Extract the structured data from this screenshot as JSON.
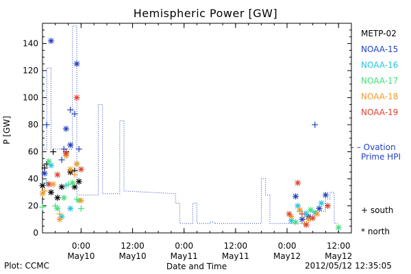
{
  "page": {
    "plot_credit": "Plot: CCMC",
    "timestamp": "2012/05/12 12:35:05"
  },
  "chart_data": {
    "type": "scatter",
    "title": "Hemispheric Power [GW]",
    "xlabel": "Date and Time",
    "ylabel": "P [GW]",
    "ylim": [
      0,
      155
    ],
    "xlim": [
      "2012-05-09 15:00",
      "2012-05-12 15:00"
    ],
    "yticks": [
      0,
      20,
      40,
      60,
      80,
      100,
      120,
      140
    ],
    "xticks": [
      {
        "t": "2012-05-10 00:00",
        "line1": "0:00",
        "line2": "May10"
      },
      {
        "t": "2012-05-10 12:00",
        "line1": "12:00",
        "line2": "May10"
      },
      {
        "t": "2012-05-11 00:00",
        "line1": "0:00",
        "line2": "May11"
      },
      {
        "t": "2012-05-11 12:00",
        "line1": "12:00",
        "line2": "May11"
      },
      {
        "t": "2012-05-12 00:00",
        "line1": "0:00",
        "line2": "May12"
      },
      {
        "t": "2012-05-12 12:00",
        "line1": "12:00",
        "line2": "May12"
      }
    ],
    "grid": false,
    "legend_position": "right",
    "satellites": [
      {
        "name": "METP-02",
        "color": "#000000"
      },
      {
        "name": "NOAA-15",
        "color": "#1f3fbf"
      },
      {
        "name": "NOAA-16",
        "color": "#22c4e0"
      },
      {
        "name": "NOAA-17",
        "color": "#3ee07a"
      },
      {
        "name": "NOAA-18",
        "color": "#f09a2a"
      },
      {
        "name": "NOAA-19",
        "color": "#e0402a"
      }
    ],
    "ovation": {
      "label_line1": "Ovation",
      "label_line2": "Prime HPI",
      "color": "#1f3fbf",
      "points": [
        [
          "2012-05-09 15:00",
          62
        ],
        [
          "2012-05-09 16:00",
          62
        ],
        [
          "2012-05-09 16:00",
          122
        ],
        [
          "2012-05-09 17:00",
          122
        ],
        [
          "2012-05-09 17:00",
          62
        ],
        [
          "2012-05-09 22:00",
          62
        ],
        [
          "2012-05-09 22:00",
          153
        ],
        [
          "2012-05-09 23:00",
          153
        ],
        [
          "2012-05-09 23:00",
          28
        ],
        [
          "2012-05-10 04:00",
          28
        ],
        [
          "2012-05-10 04:00",
          95
        ],
        [
          "2012-05-10 05:00",
          95
        ],
        [
          "2012-05-10 05:00",
          29
        ],
        [
          "2012-05-10 09:00",
          29
        ],
        [
          "2012-05-10 09:00",
          83
        ],
        [
          "2012-05-10 10:00",
          83
        ],
        [
          "2012-05-10 10:00",
          31
        ],
        [
          "2012-05-10 22:00",
          29
        ],
        [
          "2012-05-10 22:00",
          22
        ],
        [
          "2012-05-10 23:00",
          22
        ],
        [
          "2012-05-10 23:00",
          7
        ],
        [
          "2012-05-11 02:00",
          7
        ],
        [
          "2012-05-11 02:00",
          22
        ],
        [
          "2012-05-11 03:00",
          22
        ],
        [
          "2012-05-11 03:00",
          7
        ],
        [
          "2012-05-11 06:00",
          7
        ],
        [
          "2012-05-11 06:00",
          8
        ],
        [
          "2012-05-11 07:00",
          8
        ],
        [
          "2012-05-11 07:00",
          7
        ],
        [
          "2012-05-11 18:00",
          7
        ],
        [
          "2012-05-11 18:00",
          40
        ],
        [
          "2012-05-11 19:00",
          40
        ],
        [
          "2012-05-11 19:00",
          28
        ],
        [
          "2012-05-11 20:00",
          28
        ],
        [
          "2012-05-11 20:00",
          7
        ],
        [
          "2012-05-12 04:00",
          7
        ],
        [
          "2012-05-12 04:00",
          16
        ],
        [
          "2012-05-12 09:00",
          16
        ],
        [
          "2012-05-12 09:00",
          25
        ],
        [
          "2012-05-12 10:00",
          25
        ],
        [
          "2012-05-12 10:00",
          30
        ],
        [
          "2012-05-12 11:00",
          30
        ],
        [
          "2012-05-12 11:00",
          7
        ],
        [
          "2012-05-12 12:00",
          7
        ]
      ]
    },
    "markers": {
      "south_label": "+ south",
      "north_label": "* north"
    },
    "observations": [
      {
        "sat": "METP-02",
        "hem": "south",
        "t": "2012-05-09 15:30",
        "p": 48
      },
      {
        "sat": "METP-02",
        "hem": "south",
        "t": "2012-05-09 16:00",
        "p": 51
      },
      {
        "sat": "METP-02",
        "hem": "south",
        "t": "2012-05-09 17:30",
        "p": 60
      },
      {
        "sat": "METP-02",
        "hem": "south",
        "t": "2012-05-09 20:30",
        "p": 60
      },
      {
        "sat": "METP-02",
        "hem": "south",
        "t": "2012-05-09 22:30",
        "p": 46
      },
      {
        "sat": "METP-02",
        "hem": "north",
        "t": "2012-05-09 15:00",
        "p": 35
      },
      {
        "sat": "METP-02",
        "hem": "north",
        "t": "2012-05-09 17:00",
        "p": 30
      },
      {
        "sat": "METP-02",
        "hem": "north",
        "t": "2012-05-09 18:30",
        "p": 26
      },
      {
        "sat": "METP-02",
        "hem": "north",
        "t": "2012-05-09 19:30",
        "p": 34
      },
      {
        "sat": "METP-02",
        "hem": "north",
        "t": "2012-05-09 21:30",
        "p": 45
      },
      {
        "sat": "METP-02",
        "hem": "north",
        "t": "2012-05-09 22:30",
        "p": 34
      },
      {
        "sat": "METP-02",
        "hem": "north",
        "t": "2012-05-09 23:30",
        "p": 38
      },
      {
        "sat": "NOAA-15",
        "hem": "south",
        "t": "2012-05-09 16:00",
        "p": 80
      },
      {
        "sat": "NOAA-15",
        "hem": "south",
        "t": "2012-05-09 20:00",
        "p": 62
      },
      {
        "sat": "NOAA-15",
        "hem": "south",
        "t": "2012-05-09 21:30",
        "p": 91
      },
      {
        "sat": "NOAA-15",
        "hem": "south",
        "t": "2012-05-09 22:30",
        "p": 88
      },
      {
        "sat": "NOAA-15",
        "hem": "south",
        "t": "2012-05-09 23:30",
        "p": 62
      },
      {
        "sat": "NOAA-15",
        "hem": "south",
        "t": "2012-05-09 19:30",
        "p": 54
      },
      {
        "sat": "NOAA-15",
        "hem": "south",
        "t": "2012-05-12 06:30",
        "p": 80
      },
      {
        "sat": "NOAA-15",
        "hem": "north",
        "t": "2012-05-09 17:00",
        "p": 142
      },
      {
        "sat": "NOAA-15",
        "hem": "north",
        "t": "2012-05-09 20:30",
        "p": 77
      },
      {
        "sat": "NOAA-15",
        "hem": "north",
        "t": "2012-05-09 21:30",
        "p": 65
      },
      {
        "sat": "NOAA-15",
        "hem": "north",
        "t": "2012-05-09 23:00",
        "p": 125
      },
      {
        "sat": "NOAA-15",
        "hem": "north",
        "t": "2012-05-09 15:30",
        "p": 44
      },
      {
        "sat": "NOAA-15",
        "hem": "north",
        "t": "2012-05-12 02:00",
        "p": 27
      },
      {
        "sat": "NOAA-15",
        "hem": "north",
        "t": "2012-05-12 03:30",
        "p": 10
      },
      {
        "sat": "NOAA-15",
        "hem": "north",
        "t": "2012-05-12 05:00",
        "p": 12
      },
      {
        "sat": "NOAA-15",
        "hem": "north",
        "t": "2012-05-12 07:30",
        "p": 18
      },
      {
        "sat": "NOAA-15",
        "hem": "north",
        "t": "2012-05-12 09:00",
        "p": 28
      },
      {
        "sat": "NOAA-16",
        "hem": "south",
        "t": "2012-05-09 16:00",
        "p": 37
      },
      {
        "sat": "NOAA-16",
        "hem": "south",
        "t": "2012-05-09 20:30",
        "p": 35
      },
      {
        "sat": "NOAA-16",
        "hem": "south",
        "t": "2012-05-12 03:00",
        "p": 16
      },
      {
        "sat": "NOAA-16",
        "hem": "north",
        "t": "2012-05-09 17:00",
        "p": 50
      },
      {
        "sat": "NOAA-16",
        "hem": "north",
        "t": "2012-05-09 19:30",
        "p": 12
      },
      {
        "sat": "NOAA-16",
        "hem": "north",
        "t": "2012-05-09 21:30",
        "p": 18
      },
      {
        "sat": "NOAA-16",
        "hem": "north",
        "t": "2012-05-09 23:00",
        "p": 51
      },
      {
        "sat": "NOAA-16",
        "hem": "north",
        "t": "2012-05-12 01:00",
        "p": 9
      },
      {
        "sat": "NOAA-16",
        "hem": "north",
        "t": "2012-05-12 02:30",
        "p": 20
      },
      {
        "sat": "NOAA-16",
        "hem": "north",
        "t": "2012-05-12 04:30",
        "p": 14
      },
      {
        "sat": "NOAA-16",
        "hem": "north",
        "t": "2012-05-12 06:30",
        "p": 15
      },
      {
        "sat": "NOAA-16",
        "hem": "north",
        "t": "2012-05-12 08:00",
        "p": 22
      },
      {
        "sat": "NOAA-17",
        "hem": "south",
        "t": "2012-05-09 15:00",
        "p": 19
      },
      {
        "sat": "NOAA-17",
        "hem": "south",
        "t": "2012-05-09 18:00",
        "p": 20
      },
      {
        "sat": "NOAA-17",
        "hem": "south",
        "t": "2012-05-09 21:00",
        "p": 36
      },
      {
        "sat": "NOAA-17",
        "hem": "south",
        "t": "2012-05-09 23:00",
        "p": 25
      },
      {
        "sat": "NOAA-17",
        "hem": "south",
        "t": "2012-05-10 00:00",
        "p": 18
      },
      {
        "sat": "NOAA-17",
        "hem": "south",
        "t": "2012-05-12 03:30",
        "p": 14
      },
      {
        "sat": "NOAA-17",
        "hem": "north",
        "t": "2012-05-09 16:30",
        "p": 53
      },
      {
        "sat": "NOAA-17",
        "hem": "north",
        "t": "2012-05-09 18:30",
        "p": 18
      },
      {
        "sat": "NOAA-17",
        "hem": "north",
        "t": "2012-05-09 20:00",
        "p": 26
      },
      {
        "sat": "NOAA-17",
        "hem": "north",
        "t": "2012-05-09 22:00",
        "p": 37
      },
      {
        "sat": "NOAA-17",
        "hem": "north",
        "t": "2012-05-09 23:30",
        "p": 24
      },
      {
        "sat": "NOAA-17",
        "hem": "north",
        "t": "2012-05-12 02:00",
        "p": 8
      },
      {
        "sat": "NOAA-17",
        "hem": "north",
        "t": "2012-05-12 05:30",
        "p": 17
      },
      {
        "sat": "NOAA-17",
        "hem": "north",
        "t": "2012-05-12 12:00",
        "p": 4
      },
      {
        "sat": "NOAA-18",
        "hem": "south",
        "t": "2012-05-09 15:30",
        "p": 31
      },
      {
        "sat": "NOAA-18",
        "hem": "south",
        "t": "2012-05-09 19:00",
        "p": 14
      },
      {
        "sat": "NOAA-18",
        "hem": "south",
        "t": "2012-05-09 22:30",
        "p": 43
      },
      {
        "sat": "NOAA-18",
        "hem": "south",
        "t": "2012-05-12 04:00",
        "p": 7
      },
      {
        "sat": "NOAA-18",
        "hem": "north",
        "t": "2012-05-09 15:00",
        "p": 29
      },
      {
        "sat": "NOAA-18",
        "hem": "north",
        "t": "2012-05-09 17:30",
        "p": 36
      },
      {
        "sat": "NOAA-18",
        "hem": "north",
        "t": "2012-05-09 19:00",
        "p": 10
      },
      {
        "sat": "NOAA-18",
        "hem": "north",
        "t": "2012-05-09 20:30",
        "p": 57
      },
      {
        "sat": "NOAA-18",
        "hem": "north",
        "t": "2012-05-09 21:30",
        "p": 47
      },
      {
        "sat": "NOAA-18",
        "hem": "north",
        "t": "2012-05-09 23:00",
        "p": 51
      },
      {
        "sat": "NOAA-18",
        "hem": "north",
        "t": "2012-05-10 00:00",
        "p": 24
      },
      {
        "sat": "NOAA-18",
        "hem": "north",
        "t": "2012-05-12 01:00",
        "p": 12
      },
      {
        "sat": "NOAA-18",
        "hem": "north",
        "t": "2012-05-12 03:00",
        "p": 17
      },
      {
        "sat": "NOAA-18",
        "hem": "north",
        "t": "2012-05-12 05:00",
        "p": 10
      },
      {
        "sat": "NOAA-18",
        "hem": "north",
        "t": "2012-05-12 07:00",
        "p": 14
      },
      {
        "sat": "NOAA-19",
        "hem": "south",
        "t": "2012-05-12 03:30",
        "p": 14
      },
      {
        "sat": "NOAA-19",
        "hem": "north",
        "t": "2012-05-09 16:30",
        "p": 36
      },
      {
        "sat": "NOAA-19",
        "hem": "north",
        "t": "2012-05-09 18:30",
        "p": 43
      },
      {
        "sat": "NOAA-19",
        "hem": "north",
        "t": "2012-05-09 20:30",
        "p": 59
      },
      {
        "sat": "NOAA-19",
        "hem": "north",
        "t": "2012-05-09 23:00",
        "p": 100
      },
      {
        "sat": "NOAA-19",
        "hem": "north",
        "t": "2012-05-10 00:00",
        "p": 47
      },
      {
        "sat": "NOAA-19",
        "hem": "north",
        "t": "2012-05-12 00:30",
        "p": 14
      },
      {
        "sat": "NOAA-19",
        "hem": "north",
        "t": "2012-05-12 02:30",
        "p": 37
      },
      {
        "sat": "NOAA-19",
        "hem": "north",
        "t": "2012-05-12 04:30",
        "p": 6
      },
      {
        "sat": "NOAA-19",
        "hem": "north",
        "t": "2012-05-12 06:00",
        "p": 11
      },
      {
        "sat": "NOAA-19",
        "hem": "north",
        "t": "2012-05-12 09:30",
        "p": 20
      }
    ]
  }
}
